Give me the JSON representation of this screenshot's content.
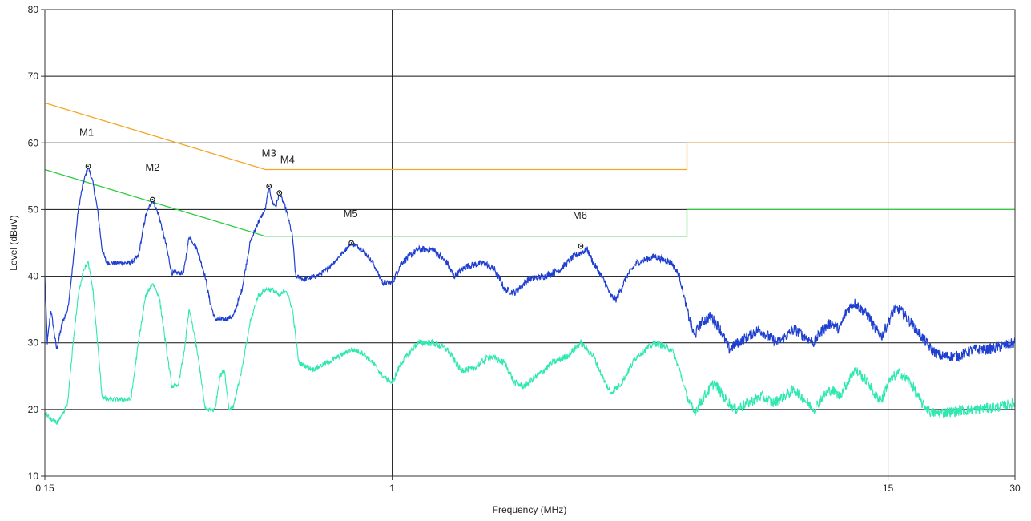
{
  "chart_data": {
    "type": "line",
    "x_scale": "log",
    "xlabel": "Frequency (MHz)",
    "ylabel": "Level (dBuV)",
    "xlim": [
      0.15,
      30
    ],
    "ylim": [
      10,
      80
    ],
    "grid": true,
    "x_ticks": [
      {
        "value": 0.15,
        "label": "0.15"
      },
      {
        "value": 1,
        "label": "1"
      },
      {
        "value": 15,
        "label": "15"
      },
      {
        "value": 30,
        "label": "30"
      }
    ],
    "y_ticks": [
      10,
      20,
      30,
      40,
      50,
      60,
      70,
      80
    ],
    "series": [
      {
        "color": "#f5a623",
        "style": "step-limit",
        "points": [
          [
            0.15,
            66
          ],
          [
            0.5,
            56
          ],
          [
            5,
            56
          ],
          [
            5,
            60
          ],
          [
            30,
            60
          ]
        ]
      },
      {
        "color": "#2ecc40",
        "style": "step-limit",
        "points": [
          [
            0.15,
            56
          ],
          [
            0.5,
            46
          ],
          [
            5,
            46
          ],
          [
            5,
            50
          ],
          [
            30,
            50
          ]
        ]
      },
      {
        "color": "#1f3fd1",
        "style": "noisy",
        "points": [
          [
            0.15,
            40
          ],
          [
            0.152,
            30
          ],
          [
            0.155,
            35
          ],
          [
            0.16,
            29
          ],
          [
            0.165,
            33
          ],
          [
            0.17,
            35
          ],
          [
            0.175,
            42
          ],
          [
            0.18,
            50
          ],
          [
            0.185,
            54
          ],
          [
            0.19,
            56.5
          ],
          [
            0.195,
            54
          ],
          [
            0.2,
            50
          ],
          [
            0.205,
            44
          ],
          [
            0.21,
            42
          ],
          [
            0.22,
            42
          ],
          [
            0.24,
            42
          ],
          [
            0.25,
            43
          ],
          [
            0.26,
            49
          ],
          [
            0.27,
            51.5
          ],
          [
            0.28,
            49
          ],
          [
            0.29,
            45
          ],
          [
            0.3,
            40.5
          ],
          [
            0.32,
            40.5
          ],
          [
            0.33,
            46
          ],
          [
            0.345,
            44
          ],
          [
            0.36,
            40
          ],
          [
            0.37,
            36
          ],
          [
            0.38,
            33.5
          ],
          [
            0.4,
            33.5
          ],
          [
            0.42,
            34
          ],
          [
            0.44,
            38
          ],
          [
            0.46,
            45
          ],
          [
            0.48,
            48
          ],
          [
            0.5,
            50
          ],
          [
            0.51,
            53.5
          ],
          [
            0.52,
            51
          ],
          [
            0.53,
            50.5
          ],
          [
            0.54,
            52.5
          ],
          [
            0.56,
            50
          ],
          [
            0.58,
            46
          ],
          [
            0.59,
            40
          ],
          [
            0.62,
            39.5
          ],
          [
            0.66,
            40
          ],
          [
            0.7,
            41
          ],
          [
            0.75,
            43
          ],
          [
            0.8,
            45
          ],
          [
            0.85,
            44
          ],
          [
            0.9,
            42
          ],
          [
            0.95,
            39
          ],
          [
            1.0,
            39
          ],
          [
            1.05,
            42
          ],
          [
            1.15,
            44
          ],
          [
            1.25,
            44
          ],
          [
            1.35,
            42
          ],
          [
            1.4,
            40
          ],
          [
            1.5,
            41.5
          ],
          [
            1.65,
            42
          ],
          [
            1.75,
            41
          ],
          [
            1.85,
            38
          ],
          [
            1.95,
            37.5
          ],
          [
            2.1,
            39.5
          ],
          [
            2.3,
            40
          ],
          [
            2.5,
            41
          ],
          [
            2.7,
            43
          ],
          [
            2.9,
            44
          ],
          [
            3.0,
            42
          ],
          [
            3.2,
            39
          ],
          [
            3.3,
            37
          ],
          [
            3.4,
            36.5
          ],
          [
            3.6,
            40
          ],
          [
            3.8,
            42
          ],
          [
            4.2,
            43
          ],
          [
            4.6,
            42
          ],
          [
            4.8,
            40
          ],
          [
            5.0,
            35
          ],
          [
            5.2,
            31
          ],
          [
            5.4,
            33
          ],
          [
            5.7,
            34
          ],
          [
            6.0,
            32
          ],
          [
            6.3,
            29
          ],
          [
            6.6,
            30
          ],
          [
            7.0,
            31
          ],
          [
            7.4,
            32
          ],
          [
            7.8,
            31
          ],
          [
            8.2,
            30
          ],
          [
            8.6,
            31
          ],
          [
            9.0,
            32
          ],
          [
            9.5,
            31
          ],
          [
            10.0,
            30
          ],
          [
            10.5,
            32
          ],
          [
            11.0,
            33
          ],
          [
            11.5,
            32
          ],
          [
            12.0,
            35
          ],
          [
            12.5,
            36
          ],
          [
            13.0,
            35
          ],
          [
            13.5,
            34
          ],
          [
            14.0,
            32
          ],
          [
            14.5,
            31
          ],
          [
            15.0,
            33
          ],
          [
            15.5,
            35
          ],
          [
            16.0,
            35
          ],
          [
            17.0,
            33
          ],
          [
            18.0,
            31
          ],
          [
            19.0,
            29
          ],
          [
            20.0,
            28
          ],
          [
            22.0,
            28
          ],
          [
            24.0,
            29
          ],
          [
            26.0,
            29
          ],
          [
            28.0,
            29.5
          ],
          [
            30.0,
            30
          ]
        ]
      },
      {
        "color": "#2ee8b0",
        "style": "noisy",
        "points": [
          [
            0.15,
            19.5
          ],
          [
            0.155,
            18.5
          ],
          [
            0.16,
            18
          ],
          [
            0.165,
            19
          ],
          [
            0.17,
            21
          ],
          [
            0.175,
            30
          ],
          [
            0.18,
            37
          ],
          [
            0.185,
            41
          ],
          [
            0.19,
            42
          ],
          [
            0.195,
            38
          ],
          [
            0.2,
            30
          ],
          [
            0.205,
            22
          ],
          [
            0.21,
            21.5
          ],
          [
            0.22,
            21.5
          ],
          [
            0.24,
            21.5
          ],
          [
            0.25,
            30
          ],
          [
            0.26,
            37
          ],
          [
            0.27,
            39
          ],
          [
            0.28,
            37
          ],
          [
            0.29,
            30
          ],
          [
            0.3,
            23.5
          ],
          [
            0.31,
            23.5
          ],
          [
            0.32,
            28
          ],
          [
            0.33,
            35
          ],
          [
            0.34,
            31
          ],
          [
            0.35,
            26
          ],
          [
            0.36,
            20
          ],
          [
            0.38,
            20
          ],
          [
            0.39,
            25
          ],
          [
            0.4,
            26
          ],
          [
            0.41,
            20
          ],
          [
            0.42,
            20.5
          ],
          [
            0.44,
            26
          ],
          [
            0.46,
            33
          ],
          [
            0.48,
            37
          ],
          [
            0.5,
            38
          ],
          [
            0.52,
            38
          ],
          [
            0.54,
            37
          ],
          [
            0.56,
            38
          ],
          [
            0.58,
            35
          ],
          [
            0.6,
            27
          ],
          [
            0.65,
            26
          ],
          [
            0.7,
            27
          ],
          [
            0.75,
            28
          ],
          [
            0.8,
            29
          ],
          [
            0.85,
            28.5
          ],
          [
            0.9,
            27
          ],
          [
            0.95,
            25
          ],
          [
            1.0,
            24
          ],
          [
            1.05,
            27
          ],
          [
            1.15,
            30
          ],
          [
            1.25,
            30
          ],
          [
            1.35,
            29
          ],
          [
            1.45,
            26
          ],
          [
            1.55,
            26
          ],
          [
            1.7,
            28
          ],
          [
            1.85,
            27
          ],
          [
            1.95,
            24
          ],
          [
            2.05,
            23.5
          ],
          [
            2.2,
            25
          ],
          [
            2.4,
            27
          ],
          [
            2.6,
            28
          ],
          [
            2.8,
            30
          ],
          [
            3.0,
            28
          ],
          [
            3.2,
            24
          ],
          [
            3.3,
            22.5
          ],
          [
            3.5,
            24
          ],
          [
            3.8,
            28
          ],
          [
            4.2,
            30
          ],
          [
            4.6,
            29
          ],
          [
            4.8,
            26
          ],
          [
            5.0,
            22
          ],
          [
            5.2,
            19.5
          ],
          [
            5.5,
            22
          ],
          [
            5.8,
            24
          ],
          [
            6.1,
            22
          ],
          [
            6.5,
            20
          ],
          [
            7.0,
            21
          ],
          [
            7.5,
            22
          ],
          [
            8.0,
            21
          ],
          [
            8.5,
            22
          ],
          [
            9.0,
            23
          ],
          [
            9.5,
            21.5
          ],
          [
            10.0,
            20
          ],
          [
            10.5,
            22
          ],
          [
            11.0,
            23
          ],
          [
            11.5,
            22
          ],
          [
            12.0,
            24
          ],
          [
            12.5,
            26
          ],
          [
            13.0,
            25
          ],
          [
            13.5,
            24
          ],
          [
            14.0,
            22
          ],
          [
            14.5,
            21.5
          ],
          [
            15.0,
            24
          ],
          [
            15.5,
            25
          ],
          [
            16.0,
            25.5
          ],
          [
            17.0,
            24
          ],
          [
            18.0,
            21
          ],
          [
            19.0,
            19.5
          ],
          [
            20.0,
            19.5
          ],
          [
            22.0,
            19.8
          ],
          [
            24.0,
            20
          ],
          [
            26.0,
            20.2
          ],
          [
            28.0,
            20.5
          ],
          [
            30.0,
            21
          ]
        ]
      }
    ],
    "markers": [
      {
        "label": "M1",
        "x": 0.19,
        "y": 56.5
      },
      {
        "label": "M2",
        "x": 0.27,
        "y": 51.5
      },
      {
        "label": "M3",
        "x": 0.51,
        "y": 53.5
      },
      {
        "label": "M4",
        "x": 0.54,
        "y": 52.5
      },
      {
        "label": "M5",
        "x": 0.8,
        "y": 45
      },
      {
        "label": "M6",
        "x": 2.8,
        "y": 44.5
      }
    ]
  }
}
